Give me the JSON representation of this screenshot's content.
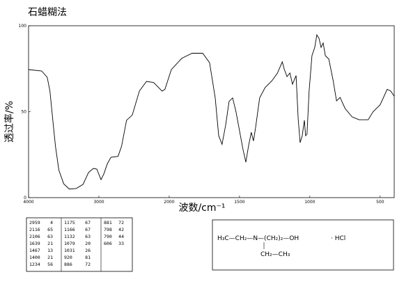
{
  "chart_data": {
    "type": "line",
    "title": "石蜡糊法",
    "x_label": "波数/cm⁻¹",
    "y_label": "透过率/%",
    "color": "#000000",
    "x": [
      4000,
      3814,
      3735,
      3696,
      3657,
      3618,
      3569,
      3500,
      3422,
      3324,
      3225,
      3147,
      3078,
      3029,
      2970,
      2929,
      2879,
      2828,
      2727,
      2677,
      2606,
      2525,
      2424,
      2323,
      2222,
      2101,
      2061,
      1985,
      1911,
      1837,
      1762,
      1713,
      1673,
      1648,
      1624,
      1599,
      1574,
      1549,
      1525,
      1475,
      1455,
      1436,
      1416,
      1401,
      1387,
      1357,
      1318,
      1269,
      1230,
      1196,
      1181,
      1162,
      1142,
      1123,
      1098,
      1083,
      1069,
      1054,
      1039,
      1030,
      1020,
      1005,
      985,
      965,
      950,
      935,
      920,
      905,
      890,
      865,
      835,
      810,
      785,
      750,
      700,
      650,
      585,
      550,
      500,
      450,
      425,
      400
    ],
    "values": [
      74.5,
      73.7,
      70,
      62,
      46,
      30,
      16,
      8,
      5,
      5.3,
      7.7,
      14.6,
      17,
      16.6,
      10.5,
      13.8,
      19.8,
      23.5,
      24,
      30,
      45,
      48,
      62,
      67.6,
      67,
      62,
      63,
      74.5,
      81,
      84,
      84,
      78.5,
      58,
      36,
      31,
      42,
      56,
      58,
      50,
      28,
      20.6,
      30,
      38,
      33,
      40,
      58,
      64,
      68,
      72.5,
      79,
      74.5,
      70.4,
      72.5,
      66,
      71,
      46,
      32,
      36,
      45,
      36,
      37,
      62,
      82.6,
      87.4,
      94.7,
      92.7,
      87.4,
      90,
      82.6,
      80.6,
      68.4,
      56.3,
      58.3,
      52,
      47,
      45.3,
      45.3,
      50,
      54,
      63,
      62,
      59
    ],
    "xlim": [
      4000,
      400
    ],
    "xticks": [
      4000,
      3000,
      2000,
      1500,
      1000,
      500
    ],
    "ylim": [
      0,
      100
    ],
    "yticks": [
      0,
      50,
      100
    ]
  },
  "peaks": [
    [
      [
        2959,
        4
      ],
      [
        2116,
        65
      ],
      [
        2106,
        63
      ],
      [
        1639,
        21
      ],
      [
        1467,
        13
      ],
      [
        1400,
        21
      ],
      [
        1234,
        56
      ]
    ],
    [
      [
        1175,
        67
      ],
      [
        1166,
        67
      ],
      [
        1132,
        63
      ],
      [
        1079,
        20
      ],
      [
        1031,
        26
      ],
      [
        920,
        81
      ],
      [
        886,
        72
      ]
    ],
    [
      [
        881,
        72
      ],
      [
        798,
        42
      ],
      [
        790,
        44
      ],
      [
        606,
        33
      ]
    ]
  ],
  "structure": {
    "main": "H₃C—CH₂—N—(CH₂)₂—OH",
    "salt": "·   HCl",
    "branch": "CH₂—CH₃"
  }
}
